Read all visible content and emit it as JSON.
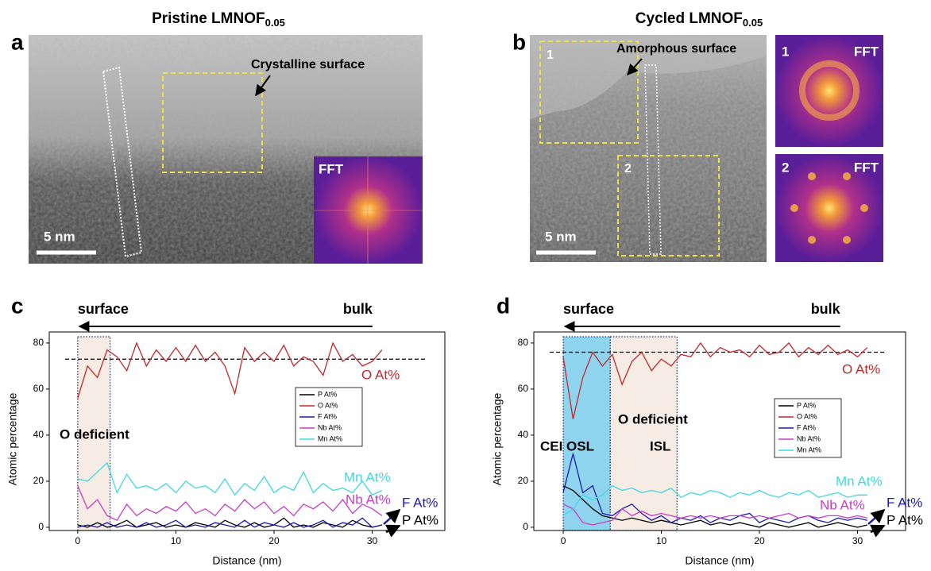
{
  "panels": [
    {
      "letter": "a",
      "title": "Pristine LMNOF",
      "title_sub": "0.05",
      "surface_label": "Crystalline surface",
      "fft_label": "FFT",
      "scale_bar": "5 nm"
    },
    {
      "letter": "b",
      "title": "Cycled LMNOF",
      "title_sub": "0.05",
      "surface_label": "Amorphous surface",
      "scale_bar": "5 nm",
      "region_1": "1",
      "region_2": "2",
      "fft_1_number": "1",
      "fft_1_label": "FFT",
      "fft_2_number": "2",
      "fft_2_label": "FFT"
    }
  ],
  "chart_data": [
    {
      "type": "line",
      "panel_label": "c",
      "xlabel": "Distance (nm)",
      "ylabel": "Atomic percentage",
      "surface_label": "surface",
      "bulk_label": "bulk",
      "xlim": [
        -2.9,
        37.4
      ],
      "ylim": [
        -1.4,
        84.8
      ],
      "xticks": [
        0,
        10,
        20,
        30
      ],
      "yticks": [
        0,
        20,
        40,
        60,
        80
      ],
      "reference_line": 73,
      "regions": [
        {
          "x": [
            0,
            3.3
          ],
          "color": "#f6ece4",
          "label": [
            "O deficient"
          ]
        }
      ],
      "x": [
        0,
        1,
        2,
        3,
        4,
        5,
        6,
        7,
        8,
        9,
        10,
        11,
        12,
        13,
        14,
        15,
        16,
        17,
        18,
        19,
        20,
        21,
        22,
        23,
        24,
        25,
        26,
        27,
        28,
        29,
        30,
        31
      ],
      "series": [
        {
          "name": "P At%",
          "color": "#000000",
          "values": [
            1,
            0,
            2,
            0,
            1,
            3,
            0,
            1,
            2,
            0,
            1,
            0,
            2,
            1,
            0,
            3,
            1,
            0,
            2,
            0,
            1,
            4,
            0,
            1,
            0,
            2,
            1,
            0,
            3,
            1,
            0,
            1
          ]
        },
        {
          "name": "O At%",
          "color": "#c0282a",
          "values": [
            56,
            70,
            65,
            77,
            74,
            68,
            80,
            70,
            77,
            72,
            78,
            72,
            79,
            72,
            76,
            70,
            58,
            78,
            72,
            76,
            72,
            79,
            70,
            74,
            72,
            66,
            80,
            72,
            75,
            70,
            72,
            77
          ]
        },
        {
          "name": "F At%",
          "color": "#1a1ab0",
          "values": [
            0,
            1,
            0,
            2,
            0,
            1,
            0,
            2,
            0,
            1,
            3,
            0,
            1,
            0,
            2,
            1,
            0,
            3,
            0,
            2,
            1,
            0,
            2,
            0,
            1,
            3,
            0,
            2,
            1,
            4,
            0,
            1
          ]
        },
        {
          "name": "Nb At%",
          "color": "#c83cc8",
          "values": [
            18,
            8,
            12,
            5,
            3,
            10,
            5,
            8,
            6,
            9,
            7,
            11,
            6,
            8,
            5,
            10,
            7,
            12,
            8,
            11,
            6,
            9,
            5,
            10,
            8,
            11,
            7,
            12,
            6,
            10,
            8,
            5
          ]
        },
        {
          "name": "Mn At%",
          "color": "#40d8e0",
          "values": [
            21,
            20,
            24,
            28,
            15,
            23,
            17,
            18,
            16,
            19,
            15,
            20,
            17,
            18,
            15,
            21,
            14,
            19,
            16,
            22,
            15,
            18,
            16,
            24,
            15,
            19,
            16,
            17,
            15,
            20,
            14,
            16
          ]
        }
      ]
    },
    {
      "type": "line",
      "panel_label": "d",
      "xlabel": "Distance (nm)",
      "ylabel": "Atomic percentage",
      "surface_label": "surface",
      "bulk_label": "bulk",
      "xlim": [
        -3,
        34.9
      ],
      "ylim": [
        -1.4,
        84.8
      ],
      "xticks": [
        0,
        10,
        20,
        30
      ],
      "yticks": [
        0,
        20,
        40,
        60,
        80
      ],
      "reference_line": 76,
      "regions": [
        {
          "x": [
            0,
            4.8
          ],
          "color": "#8fd4ee",
          "label": [
            "CEI OSL"
          ]
        },
        {
          "x": [
            4.8,
            11.6
          ],
          "color": "#f6ece4",
          "label": [
            "O deficient",
            "ISL"
          ]
        }
      ],
      "x": [
        0,
        1,
        2,
        3,
        4,
        5,
        6,
        7,
        8,
        9,
        10,
        11,
        12,
        13,
        14,
        15,
        16,
        17,
        18,
        19,
        20,
        21,
        22,
        23,
        24,
        25,
        26,
        27,
        28,
        29,
        30,
        31
      ],
      "series": [
        {
          "name": "P At%",
          "color": "#000000",
          "values": [
            18,
            16,
            12,
            8,
            5,
            4,
            3,
            4,
            3,
            2,
            3,
            2,
            1,
            2,
            3,
            1,
            2,
            1,
            2,
            1,
            0,
            2,
            1,
            0,
            1,
            2,
            0,
            1,
            2,
            1,
            0,
            1
          ]
        },
        {
          "name": "O At%",
          "color": "#c0282a",
          "values": [
            74,
            47,
            65,
            76,
            70,
            75,
            62,
            72,
            76,
            68,
            73,
            70,
            75,
            74,
            80,
            74,
            78,
            76,
            77,
            74,
            79,
            75,
            76,
            80,
            74,
            78,
            75,
            79,
            75,
            77,
            74,
            78
          ]
        },
        {
          "name": "F At%",
          "color": "#1a1ab0",
          "values": [
            15,
            32,
            15,
            18,
            6,
            5,
            8,
            10,
            6,
            3,
            5,
            2,
            4,
            3,
            5,
            2,
            4,
            3,
            5,
            6,
            2,
            4,
            3,
            2,
            4,
            5,
            3,
            2,
            4,
            3,
            4,
            3
          ]
        },
        {
          "name": "Nb At%",
          "color": "#c83cc8",
          "values": [
            10,
            8,
            2,
            1,
            2,
            3,
            8,
            5,
            7,
            5,
            6,
            5,
            4,
            5,
            4,
            5,
            4,
            5,
            5,
            4,
            5,
            4,
            5,
            6,
            4,
            5,
            4,
            5,
            5,
            4,
            5,
            4
          ]
        },
        {
          "name": "Mn At%",
          "color": "#40d8e0",
          "values": [
            5,
            8,
            14,
            12,
            14,
            18,
            16,
            17,
            15,
            16,
            15,
            17,
            13,
            15,
            14,
            16,
            15,
            13,
            15,
            14,
            16,
            14,
            13,
            15,
            14,
            16,
            13,
            14,
            15,
            13,
            14,
            14
          ]
        }
      ]
    }
  ]
}
